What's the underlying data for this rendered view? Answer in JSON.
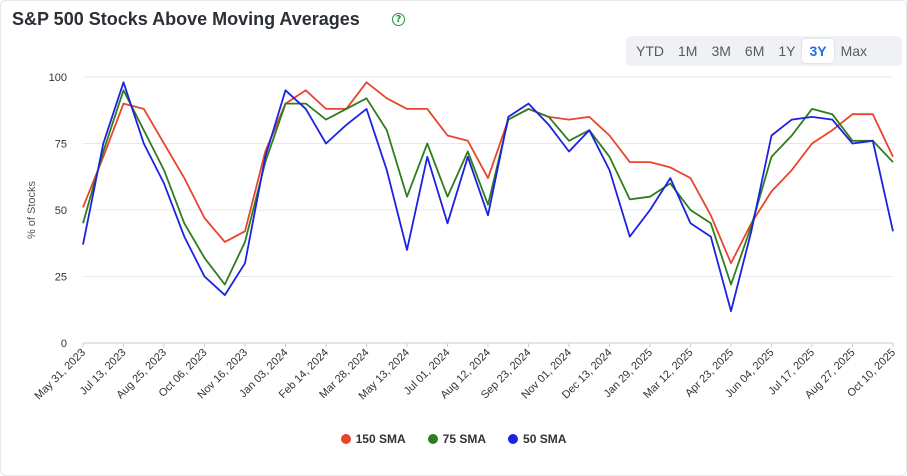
{
  "header": {
    "title": "S&P 500 Stocks Above Moving Averages"
  },
  "ranges": [
    {
      "label": "YTD",
      "active": false
    },
    {
      "label": "1M",
      "active": false
    },
    {
      "label": "3M",
      "active": false
    },
    {
      "label": "6M",
      "active": false
    },
    {
      "label": "1Y",
      "active": false
    },
    {
      "label": "3Y",
      "active": true
    },
    {
      "label": "Max",
      "active": false
    }
  ],
  "chart_data": {
    "type": "line",
    "title": "S&P 500 Stocks Above Moving Averages",
    "ylabel": "% of Stocks",
    "xlabel": "",
    "ylim": [
      0,
      100
    ],
    "yticks": [
      0,
      25,
      50,
      75,
      100
    ],
    "grid": true,
    "legend_position": "bottom",
    "x_ticks": [
      "May 31, 2023",
      "Jul 13, 2023",
      "Aug 25, 2023",
      "Oct 06, 2023",
      "Nov 16, 2023",
      "Jan 03, 2024",
      "Feb 14, 2024",
      "Mar 28, 2024",
      "May 13, 2024",
      "Jul 01, 2024",
      "Aug 12, 2024",
      "Sep 23, 2024",
      "Nov 01, 2024",
      "Dec 13, 2024",
      "Jan 29, 2025",
      "Mar 12, 2025",
      "Apr 23, 2025",
      "Jun 04, 2025",
      "Jul 17, 2025",
      "Aug 27, 2025",
      "Oct 10, 2025"
    ],
    "x": [
      "May 31, 2023",
      "Jun 21, 2023",
      "Jul 13, 2023",
      "Aug 03, 2023",
      "Aug 25, 2023",
      "Sep 15, 2023",
      "Oct 06, 2023",
      "Oct 27, 2023",
      "Nov 16, 2023",
      "Dec 08, 2023",
      "Jan 03, 2024",
      "Jan 24, 2024",
      "Feb 14, 2024",
      "Mar 06, 2024",
      "Mar 28, 2024",
      "Apr 19, 2024",
      "May 13, 2024",
      "Jun 06, 2024",
      "Jul 01, 2024",
      "Jul 22, 2024",
      "Aug 12, 2024",
      "Sep 03, 2024",
      "Sep 23, 2024",
      "Oct 14, 2024",
      "Nov 01, 2024",
      "Nov 22, 2024",
      "Dec 13, 2024",
      "Jan 07, 2025",
      "Jan 29, 2025",
      "Feb 20, 2025",
      "Mar 12, 2025",
      "Apr 02, 2025",
      "Apr 23, 2025",
      "May 14, 2025",
      "Jun 04, 2025",
      "Jun 25, 2025",
      "Jul 17, 2025",
      "Aug 06, 2025",
      "Aug 27, 2025",
      "Sep 18, 2025",
      "Oct 10, 2025"
    ],
    "series": [
      {
        "name": "150 SMA",
        "color": "#e8452c",
        "values": [
          51,
          70,
          90,
          88,
          75,
          62,
          47,
          38,
          42,
          72,
          90,
          95,
          88,
          88,
          98,
          92,
          88,
          88,
          78,
          76,
          62,
          84,
          88,
          85,
          84,
          85,
          78,
          68,
          68,
          66,
          62,
          48,
          30,
          45,
          57,
          65,
          75,
          80,
          86,
          86,
          70
        ]
      },
      {
        "name": "75 SMA",
        "color": "#2e7d1f",
        "values": [
          45,
          72,
          95,
          80,
          65,
          45,
          32,
          22,
          38,
          68,
          90,
          90,
          84,
          88,
          92,
          80,
          55,
          75,
          55,
          72,
          52,
          84,
          88,
          85,
          76,
          80,
          70,
          54,
          55,
          60,
          50,
          45,
          22,
          44,
          70,
          78,
          88,
          86,
          76,
          76,
          68
        ]
      },
      {
        "name": "50 SMA",
        "color": "#1c22e0",
        "values": [
          37,
          75,
          98,
          75,
          60,
          40,
          25,
          18,
          30,
          70,
          95,
          88,
          75,
          82,
          88,
          65,
          35,
          70,
          45,
          70,
          48,
          85,
          90,
          82,
          72,
          80,
          65,
          40,
          50,
          62,
          45,
          40,
          12,
          42,
          78,
          84,
          85,
          84,
          75,
          76,
          42
        ]
      }
    ]
  }
}
